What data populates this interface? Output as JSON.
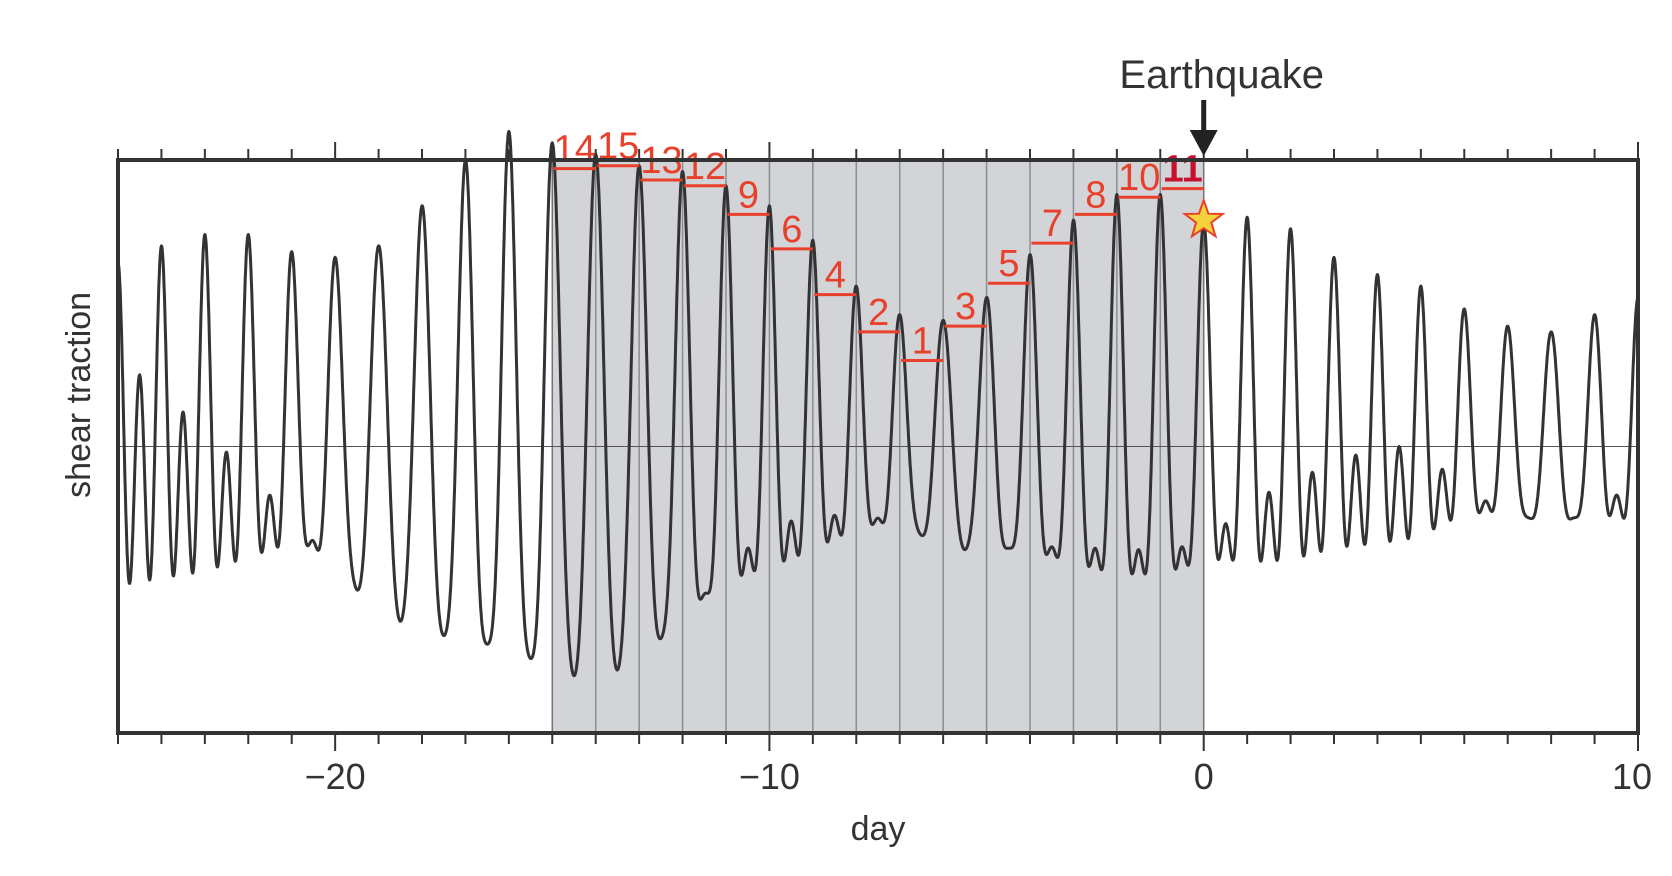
{
  "chart_data": {
    "type": "line",
    "title": "",
    "xlabel": "day",
    "ylabel": "shear traction",
    "xlim": [
      -25,
      10
    ],
    "ylim": [
      -1.0,
      1.0
    ],
    "x_ticks": [
      {
        "value": -20,
        "label": "−20"
      },
      {
        "value": -10,
        "label": "−10"
      },
      {
        "value": 0,
        "label": "0"
      },
      {
        "value": 10,
        "label": "10"
      }
    ],
    "grid": false,
    "baseline": 0,
    "shaded_region": {
      "from": -15.0,
      "to": 0.0,
      "divisions_days": 1.0
    },
    "annotation": {
      "text": "Earthquake",
      "x": 0
    },
    "event_marker": {
      "type": "star",
      "x": 0.0,
      "y": 0.79,
      "fill": "#f5d33b",
      "stroke": "#e8402a"
    },
    "peaks": [
      {
        "label": "14",
        "x": -14.0,
        "y": 0.97
      },
      {
        "label": "15",
        "x": -13.0,
        "y": 0.98
      },
      {
        "label": "13",
        "x": -12.0,
        "y": 0.93
      },
      {
        "label": "12",
        "x": -11.0,
        "y": 0.91
      },
      {
        "label": "9",
        "x": -10.0,
        "y": 0.81
      },
      {
        "label": "6",
        "x": -9.0,
        "y": 0.69
      },
      {
        "label": "4",
        "x": -8.0,
        "y": 0.53
      },
      {
        "label": "2",
        "x": -7.0,
        "y": 0.4
      },
      {
        "label": "1",
        "x": -6.0,
        "y": 0.3
      },
      {
        "label": "3",
        "x": -5.0,
        "y": 0.42
      },
      {
        "label": "5",
        "x": -4.0,
        "y": 0.57
      },
      {
        "label": "7",
        "x": -3.0,
        "y": 0.71
      },
      {
        "label": "8",
        "x": -2.0,
        "y": 0.81
      },
      {
        "label": "10",
        "x": -1.0,
        "y": 0.87
      },
      {
        "label": "11",
        "x": 0.0,
        "y": 0.9,
        "emphasis": true
      }
    ],
    "series": [
      {
        "color": "#333333",
        "diurnal_amplitude": [
          [
            -25,
            0.16
          ],
          [
            -24,
            0.26
          ],
          [
            -23,
            0.34
          ],
          [
            -22,
            0.42
          ],
          [
            -21,
            0.46
          ],
          [
            -20,
            0.54
          ],
          [
            -19,
            0.64
          ],
          [
            -18,
            0.74
          ],
          [
            -17,
            0.84
          ],
          [
            -16,
            0.9
          ],
          [
            -15,
            0.92
          ],
          [
            -14,
            0.92
          ],
          [
            -13,
            0.86
          ],
          [
            -12,
            0.78
          ],
          [
            -11,
            0.67
          ],
          [
            -10,
            0.56
          ],
          [
            -9,
            0.48
          ],
          [
            -8,
            0.4
          ],
          [
            -7,
            0.36
          ],
          [
            -6,
            0.4
          ],
          [
            -5,
            0.44
          ],
          [
            -4,
            0.51
          ],
          [
            -3,
            0.57
          ],
          [
            -2,
            0.62
          ],
          [
            -1,
            0.62
          ],
          [
            0,
            0.56
          ],
          [
            1,
            0.5
          ],
          [
            2,
            0.44
          ],
          [
            3,
            0.36
          ],
          [
            4,
            0.3
          ],
          [
            5,
            0.28
          ],
          [
            6,
            0.32
          ],
          [
            7,
            0.32
          ],
          [
            8,
            0.34
          ],
          [
            9,
            0.34
          ],
          [
            10,
            0.32
          ]
        ],
        "semidiurnal_amplitude": [
          [
            -25,
            0.48
          ],
          [
            -24,
            0.44
          ],
          [
            -23,
            0.4
          ],
          [
            -22,
            0.32
          ],
          [
            -21,
            0.22
          ],
          [
            -20,
            0.12
          ],
          [
            -19,
            0.06
          ],
          [
            -18,
            0.1
          ],
          [
            -17,
            0.16
          ],
          [
            -16,
            0.2
          ],
          [
            -15,
            0.14
          ],
          [
            -14,
            0.1
          ],
          [
            -13,
            0.12
          ],
          [
            -12,
            0.18
          ],
          [
            -11,
            0.24
          ],
          [
            -10,
            0.28
          ],
          [
            -9,
            0.24
          ],
          [
            -8,
            0.16
          ],
          [
            -7,
            0.1
          ],
          [
            -6,
            0.04
          ],
          [
            -5,
            0.08
          ],
          [
            -4,
            0.16
          ],
          [
            -3,
            0.22
          ],
          [
            -2,
            0.26
          ],
          [
            -1,
            0.26
          ],
          [
            0,
            0.22
          ],
          [
            1,
            0.3
          ],
          [
            2,
            0.32
          ],
          [
            3,
            0.3
          ],
          [
            4,
            0.3
          ],
          [
            5,
            0.28
          ],
          [
            6,
            0.16
          ],
          [
            7,
            0.1
          ],
          [
            8,
            0.06
          ],
          [
            9,
            0.12
          ],
          [
            10,
            0.2
          ]
        ]
      }
    ]
  }
}
